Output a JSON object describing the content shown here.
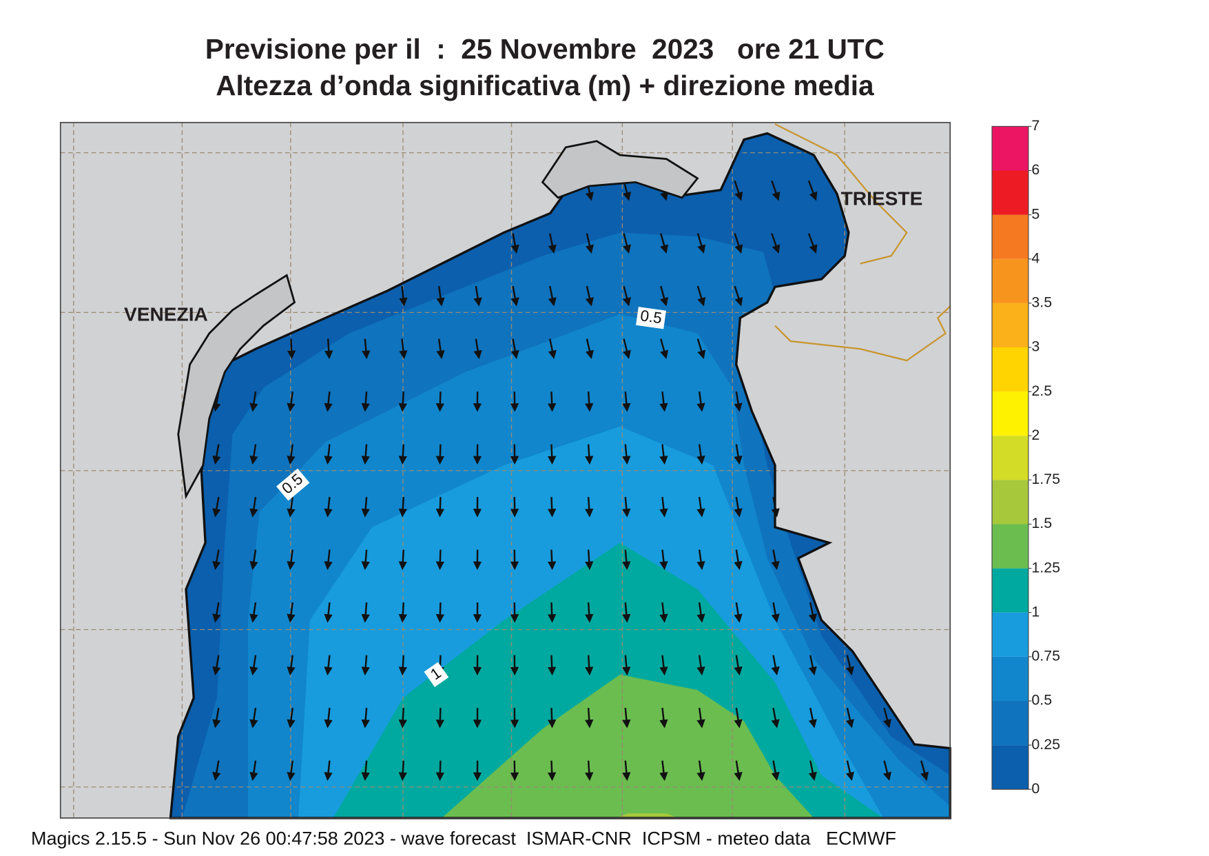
{
  "title": {
    "line1": "Previsione per il  :  25 Novembre  2023   ore 21 UTC",
    "line2": "Altezza d’onda significativa (m) + direzione media"
  },
  "map": {
    "places": [
      "VENEZIA",
      "TRIESTE"
    ],
    "contour_labels": [
      "0.5",
      "0.5",
      "1"
    ]
  },
  "legend": {
    "ticks": [
      0,
      0.25,
      0.5,
      0.75,
      1,
      1.25,
      1.5,
      1.75,
      2,
      2.5,
      3,
      3.5,
      4,
      5,
      6,
      7
    ],
    "colors": [
      "#0b5fad",
      "#0f73bd",
      "#1186cd",
      "#189cdd",
      "#00a99f",
      "#6bbd50",
      "#a7c83b",
      "#d3dc26",
      "#fff200",
      "#ffd400",
      "#fbb119",
      "#f7941d",
      "#f47920",
      "#ed1c24",
      "#ec1563"
    ]
  },
  "footer": "Magics 2.15.5 - Sun Nov 26 00:47:58 2023 - wave forecast  ISMAR-CNR  ICPSM - meteo data   ECMWF"
}
